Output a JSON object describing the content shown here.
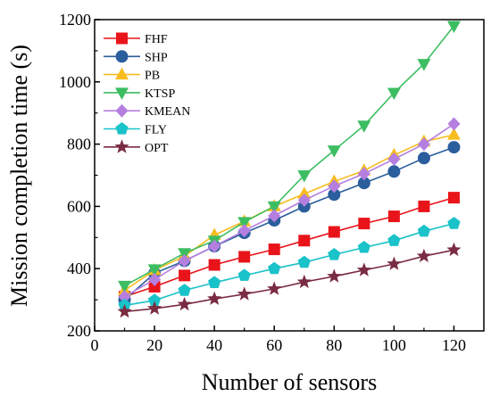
{
  "chart_data": {
    "type": "line",
    "xlabel": "Number of sensors",
    "ylabel": "Mission completion time (s)",
    "xlim": [
      0,
      130
    ],
    "ylim": [
      200,
      1200
    ],
    "x_ticks": [
      "0",
      "20",
      "40",
      "60",
      "80",
      "100",
      "120"
    ],
    "y_ticks": [
      "200",
      "400",
      "600",
      "800",
      "1000",
      "1200"
    ],
    "x": [
      10,
      20,
      30,
      40,
      50,
      60,
      70,
      80,
      90,
      100,
      110,
      120
    ],
    "legend_position": "top-left",
    "grid": false,
    "series": [
      {
        "name": "FHF",
        "color": "#e8141a",
        "marker": "square",
        "values": [
          310,
          342,
          378,
          412,
          438,
          462,
          490,
          518,
          545,
          568,
          600,
          628
        ]
      },
      {
        "name": "SHP",
        "color": "#2b5e9c",
        "marker": "circle",
        "values": [
          300,
          385,
          425,
          472,
          515,
          555,
          600,
          638,
          675,
          712,
          755,
          790
        ]
      },
      {
        "name": "PB",
        "color": "#f7bd1f",
        "marker": "triangle-up",
        "values": [
          330,
          395,
          440,
          508,
          552,
          600,
          640,
          680,
          715,
          765,
          808,
          830
        ]
      },
      {
        "name": "KTSP",
        "color": "#3dbd62",
        "marker": "triangle-down",
        "values": [
          345,
          398,
          450,
          490,
          550,
          600,
          700,
          780,
          860,
          965,
          1058,
          1180
        ]
      },
      {
        "name": "KMEAN",
        "color": "#b57fe0",
        "marker": "diamond",
        "values": [
          310,
          365,
          425,
          472,
          522,
          570,
          620,
          665,
          705,
          752,
          800,
          865
        ]
      },
      {
        "name": "FLY",
        "color": "#1ac2c9",
        "marker": "pentagon",
        "values": [
          282,
          298,
          330,
          355,
          378,
          400,
          420,
          445,
          468,
          490,
          520,
          545
        ]
      },
      {
        "name": "OPT",
        "color": "#7a2c42",
        "marker": "star",
        "values": [
          262,
          272,
          285,
          303,
          318,
          335,
          357,
          375,
          395,
          415,
          440,
          460
        ]
      }
    ]
  }
}
